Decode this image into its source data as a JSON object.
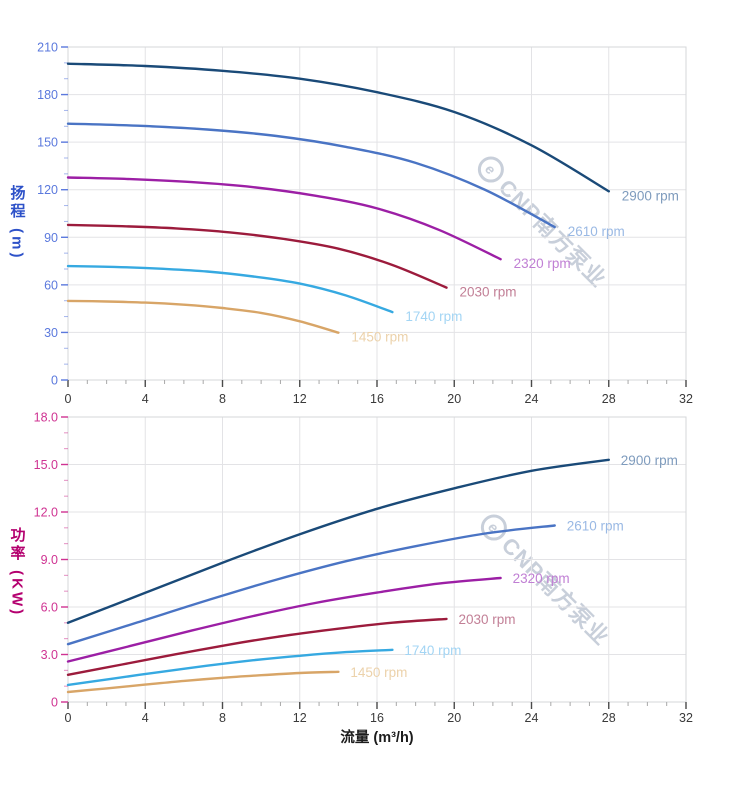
{
  "watermark": {
    "text": "CNP南方泵业",
    "logo": "e",
    "color": "#c3cad6"
  },
  "style": {
    "background": "#ffffff",
    "grid_color": "#e3e3e6",
    "border_color": "#d5d7da",
    "x_tick_color": "#4a4a4a",
    "x_minor_tick_color": "#a8a8a8",
    "x_tick_label_color": "#3a3a3a"
  },
  "chart_data": [
    {
      "type": "line",
      "name": "head-curve-chart",
      "title": "",
      "ylabel": "扬程 (m)",
      "xlabel": "",
      "xlim": [
        0,
        32
      ],
      "ylim": [
        0,
        210
      ],
      "x_major": 4,
      "x_minor": 1,
      "y_major": 30,
      "y_minor": 10,
      "grid": true,
      "legend_position": "curve-end-labels",
      "axis_color": "#5b79dd",
      "title_color": "#2d51c8",
      "x_tick_labels": [
        "0",
        "4",
        "8",
        "12",
        "16",
        "20",
        "24",
        "28",
        "32"
      ],
      "y_tick_labels": [
        "0",
        "30",
        "60",
        "90",
        "120",
        "150",
        "180",
        "210"
      ],
      "series": [
        {
          "name": "2900 rpm",
          "color": "#1a4a78",
          "label_color": "#7e9bbd",
          "points": [
            [
              0,
              199.5
            ],
            [
              4,
              198
            ],
            [
              8,
              195
            ],
            [
              12,
              190
            ],
            [
              16,
              181.5
            ],
            [
              20,
              169
            ],
            [
              24,
              148
            ],
            [
              28,
              119
            ]
          ]
        },
        {
          "name": "2610 rpm",
          "color": "#4a74c4",
          "label_color": "#9ab9e4",
          "points": [
            [
              0,
              161.6
            ],
            [
              3.6,
              160.4
            ],
            [
              7.2,
              158.0
            ],
            [
              10.8,
              153.9
            ],
            [
              14.4,
              147.0
            ],
            [
              18,
              136.9
            ],
            [
              21.6,
              119.9
            ],
            [
              25.2,
              96.4
            ]
          ]
        },
        {
          "name": "2320 rpm",
          "color": "#9c1fa5",
          "label_color": "#c07fd4",
          "points": [
            [
              0,
              127.7
            ],
            [
              3.2,
              126.7
            ],
            [
              6.4,
              124.8
            ],
            [
              9.6,
              121.6
            ],
            [
              12.8,
              116.2
            ],
            [
              16,
              108.2
            ],
            [
              19.2,
              94.7
            ],
            [
              22.4,
              76.2
            ]
          ]
        },
        {
          "name": "2030 rpm",
          "color": "#9c1b3c",
          "label_color": "#c27f96",
          "points": [
            [
              0,
              97.8
            ],
            [
              2.8,
              97.0
            ],
            [
              5.6,
              95.6
            ],
            [
              8.4,
              93.1
            ],
            [
              11.2,
              88.9
            ],
            [
              14,
              82.8
            ],
            [
              16.8,
              72.5
            ],
            [
              19.6,
              58.3
            ]
          ]
        },
        {
          "name": "1740 rpm",
          "color": "#36a9e1",
          "label_color": "#a3d5f4",
          "points": [
            [
              0,
              71.8
            ],
            [
              2.4,
              71.3
            ],
            [
              4.8,
              70.2
            ],
            [
              7.2,
              68.4
            ],
            [
              9.6,
              65.3
            ],
            [
              12,
              60.8
            ],
            [
              14.4,
              53.3
            ],
            [
              16.8,
              42.8
            ]
          ]
        },
        {
          "name": "1450 rpm",
          "color": "#d8a567",
          "label_color": "#ecd2ab",
          "points": [
            [
              0,
              49.9
            ],
            [
              2,
              49.5
            ],
            [
              4,
              48.8
            ],
            [
              6,
              47.5
            ],
            [
              8,
              45.4
            ],
            [
              10,
              42.3
            ],
            [
              12,
              37.0
            ],
            [
              14,
              29.8
            ]
          ]
        }
      ]
    },
    {
      "type": "line",
      "name": "power-curve-chart",
      "title": "",
      "ylabel": "功率 (KW)",
      "xlabel": "流量 (m³/h)",
      "xlim": [
        0,
        32
      ],
      "ylim": [
        0,
        18
      ],
      "x_major": 4,
      "x_minor": 1,
      "y_major": 3,
      "y_minor": 1,
      "grid": true,
      "legend_position": "curve-end-labels",
      "axis_color": "#cf3392",
      "title_color": "#b4006f",
      "x_tick_labels": [
        "0",
        "4",
        "8",
        "12",
        "16",
        "20",
        "24",
        "28",
        "32"
      ],
      "y_tick_labels": [
        "0",
        "3.0",
        "6.0",
        "9.0",
        "12.0",
        "15.0",
        "18.0"
      ],
      "series": [
        {
          "name": "2900 rpm",
          "color": "#1a4a78",
          "label_color": "#7e9bbd",
          "points": [
            [
              0,
              5.0
            ],
            [
              4,
              6.9
            ],
            [
              8,
              8.8
            ],
            [
              12,
              10.6
            ],
            [
              16,
              12.2
            ],
            [
              20,
              13.5
            ],
            [
              24,
              14.6
            ],
            [
              28,
              15.3
            ]
          ]
        },
        {
          "name": "2610 rpm",
          "color": "#4a74c4",
          "label_color": "#9ab9e4",
          "points": [
            [
              0,
              3.65
            ],
            [
              3.6,
              5.03
            ],
            [
              7.2,
              6.42
            ],
            [
              10.8,
              7.73
            ],
            [
              14.4,
              8.89
            ],
            [
              18,
              9.84
            ],
            [
              21.6,
              10.64
            ],
            [
              25.2,
              11.15
            ]
          ]
        },
        {
          "name": "2320 rpm",
          "color": "#9c1fa5",
          "label_color": "#c07fd4",
          "points": [
            [
              0,
              2.56
            ],
            [
              3.2,
              3.53
            ],
            [
              6.4,
              4.51
            ],
            [
              9.6,
              5.43
            ],
            [
              12.8,
              6.25
            ],
            [
              16,
              6.91
            ],
            [
              19.2,
              7.48
            ],
            [
              22.4,
              7.83
            ]
          ]
        },
        {
          "name": "2030 rpm",
          "color": "#9c1b3c",
          "label_color": "#c27f96",
          "points": [
            [
              0,
              1.72
            ],
            [
              2.8,
              2.37
            ],
            [
              5.6,
              3.02
            ],
            [
              8.4,
              3.64
            ],
            [
              11.2,
              4.18
            ],
            [
              14,
              4.63
            ],
            [
              16.8,
              5.01
            ],
            [
              19.6,
              5.25
            ]
          ]
        },
        {
          "name": "1740 rpm",
          "color": "#36a9e1",
          "label_color": "#a3d5f4",
          "points": [
            [
              0,
              1.08
            ],
            [
              2.4,
              1.49
            ],
            [
              4.8,
              1.9
            ],
            [
              7.2,
              2.29
            ],
            [
              9.6,
              2.64
            ],
            [
              12,
              2.92
            ],
            [
              14.4,
              3.15
            ],
            [
              16.8,
              3.3
            ]
          ]
        },
        {
          "name": "1450 rpm",
          "color": "#d8a567",
          "label_color": "#ecd2ab",
          "points": [
            [
              0,
              0.63
            ],
            [
              2,
              0.86
            ],
            [
              4,
              1.1
            ],
            [
              6,
              1.33
            ],
            [
              8,
              1.53
            ],
            [
              10,
              1.69
            ],
            [
              12,
              1.83
            ],
            [
              14,
              1.91
            ]
          ]
        }
      ]
    }
  ]
}
